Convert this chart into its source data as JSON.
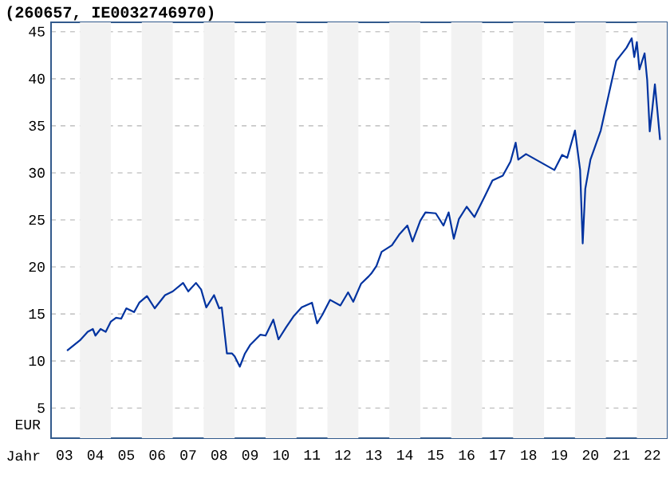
{
  "chart_data": {
    "type": "line",
    "title": "(260657, IE0032746970)",
    "xlabel": "Jahr",
    "ylabel": "EUR",
    "x": [
      "2003-08",
      "2004-01",
      "2004-04",
      "2004-06",
      "2004-07",
      "2004-09",
      "2004-11",
      "2005-01",
      "2005-03",
      "2005-05",
      "2005-07",
      "2005-10",
      "2005-12",
      "2006-03",
      "2006-06",
      "2006-10",
      "2007-01",
      "2007-05",
      "2007-07",
      "2007-10",
      "2007-12",
      "2008-02",
      "2008-05",
      "2008-07",
      "2008-08",
      "2008-10",
      "2008-12",
      "2009-01",
      "2009-03",
      "2009-05",
      "2009-07",
      "2009-11",
      "2010-01",
      "2010-04",
      "2010-06",
      "2010-09",
      "2010-12",
      "2011-03",
      "2011-07",
      "2011-09",
      "2011-11",
      "2012-02",
      "2012-06",
      "2012-09",
      "2012-11",
      "2013-02",
      "2013-05",
      "2013-06",
      "2013-08",
      "2013-10",
      "2014-02",
      "2014-05",
      "2014-08",
      "2014-10",
      "2015-01",
      "2015-03",
      "2015-07",
      "2015-10",
      "2015-12",
      "2016-02",
      "2016-04",
      "2016-07",
      "2016-10",
      "2017-02",
      "2017-05",
      "2017-09",
      "2017-12",
      "2018-02",
      "2018-03",
      "2018-06",
      "2019-05",
      "2019-08",
      "2019-10",
      "2020-01",
      "2020-03",
      "2020-04",
      "2020-05",
      "2020-07",
      "2020-11",
      "2021-02",
      "2021-05",
      "2021-09",
      "2021-11",
      "2021-12",
      "2022-01",
      "2022-02",
      "2022-04",
      "2022-05",
      "2022-06",
      "2022-07",
      "2022-08",
      "2022-09",
      "2022-10"
    ],
    "series": [
      {
        "color": "#0033a0",
        "values": [
          11.1,
          12.2,
          13.1,
          13.4,
          12.7,
          13.4,
          13.1,
          14.2,
          14.6,
          14.5,
          15.6,
          15.2,
          16.2,
          16.9,
          15.6,
          17.0,
          17.4,
          18.3,
          17.4,
          18.3,
          17.6,
          15.7,
          17.0,
          15.6,
          15.7,
          10.8,
          10.8,
          10.5,
          9.4,
          10.8,
          11.7,
          12.8,
          12.7,
          14.4,
          12.3,
          13.6,
          14.8,
          15.7,
          16.2,
          14.0,
          14.9,
          16.5,
          15.9,
          17.3,
          16.3,
          18.2,
          19.0,
          19.3,
          20.1,
          21.6,
          22.3,
          23.5,
          24.4,
          22.7,
          24.9,
          25.8,
          25.7,
          24.4,
          25.8,
          23.0,
          25.1,
          26.4,
          25.3,
          27.5,
          29.2,
          29.7,
          31.2,
          33.2,
          31.4,
          32.0,
          30.3,
          31.9,
          31.6,
          34.5,
          30.3,
          22.5,
          28.3,
          31.4,
          34.5,
          38.2,
          41.9,
          43.3,
          44.3,
          42.3,
          43.9,
          41.0,
          42.7,
          39.9,
          34.4,
          36.8,
          39.4,
          36.5,
          33.5
        ]
      }
    ],
    "xlim": [
      "2003-01-25",
      "2022-12-20"
    ],
    "ylim": [
      1.8,
      46
    ],
    "xticks": [
      {
        "value": "2003-07",
        "label": "03"
      },
      {
        "value": "2004-07",
        "label": "04"
      },
      {
        "value": "2005-07",
        "label": "05"
      },
      {
        "value": "2006-07",
        "label": "06"
      },
      {
        "value": "2007-07",
        "label": "07"
      },
      {
        "value": "2008-07",
        "label": "08"
      },
      {
        "value": "2009-07",
        "label": "09"
      },
      {
        "value": "2010-07",
        "label": "10"
      },
      {
        "value": "2011-07",
        "label": "11"
      },
      {
        "value": "2012-07",
        "label": "12"
      },
      {
        "value": "2013-07",
        "label": "13"
      },
      {
        "value": "2014-07",
        "label": "14"
      },
      {
        "value": "2015-07",
        "label": "15"
      },
      {
        "value": "2016-07",
        "label": "16"
      },
      {
        "value": "2017-07",
        "label": "17"
      },
      {
        "value": "2018-07",
        "label": "18"
      },
      {
        "value": "2019-07",
        "label": "19"
      },
      {
        "value": "2020-07",
        "label": "20"
      },
      {
        "value": "2021-07",
        "label": "21"
      },
      {
        "value": "2022-07",
        "label": "22"
      }
    ],
    "yticks": [
      5,
      10,
      15,
      20,
      25,
      30,
      35,
      40,
      45
    ],
    "bands": [
      {
        "axis": "x",
        "from": "2004-01",
        "to": "2005-01",
        "color": "#f2f2f2"
      },
      {
        "axis": "x",
        "from": "2006-01",
        "to": "2007-01",
        "color": "#f2f2f2"
      },
      {
        "axis": "x",
        "from": "2008-01",
        "to": "2009-01",
        "color": "#f2f2f2"
      },
      {
        "axis": "x",
        "from": "2010-01",
        "to": "2011-01",
        "color": "#f2f2f2"
      },
      {
        "axis": "x",
        "from": "2012-01",
        "to": "2013-01",
        "color": "#f2f2f2"
      },
      {
        "axis": "x",
        "from": "2014-01",
        "to": "2015-01",
        "color": "#f2f2f2"
      },
      {
        "axis": "x",
        "from": "2016-01",
        "to": "2017-01",
        "color": "#f2f2f2"
      },
      {
        "axis": "x",
        "from": "2018-01",
        "to": "2019-01",
        "color": "#f2f2f2"
      },
      {
        "axis": "x",
        "from": "2020-01",
        "to": "2021-01",
        "color": "#f2f2f2"
      },
      {
        "axis": "x",
        "from": "2022-01",
        "to": "2022-12-20",
        "color": "#f2f2f2"
      }
    ],
    "grid": "y",
    "marker": "none",
    "line_style": "solid"
  }
}
